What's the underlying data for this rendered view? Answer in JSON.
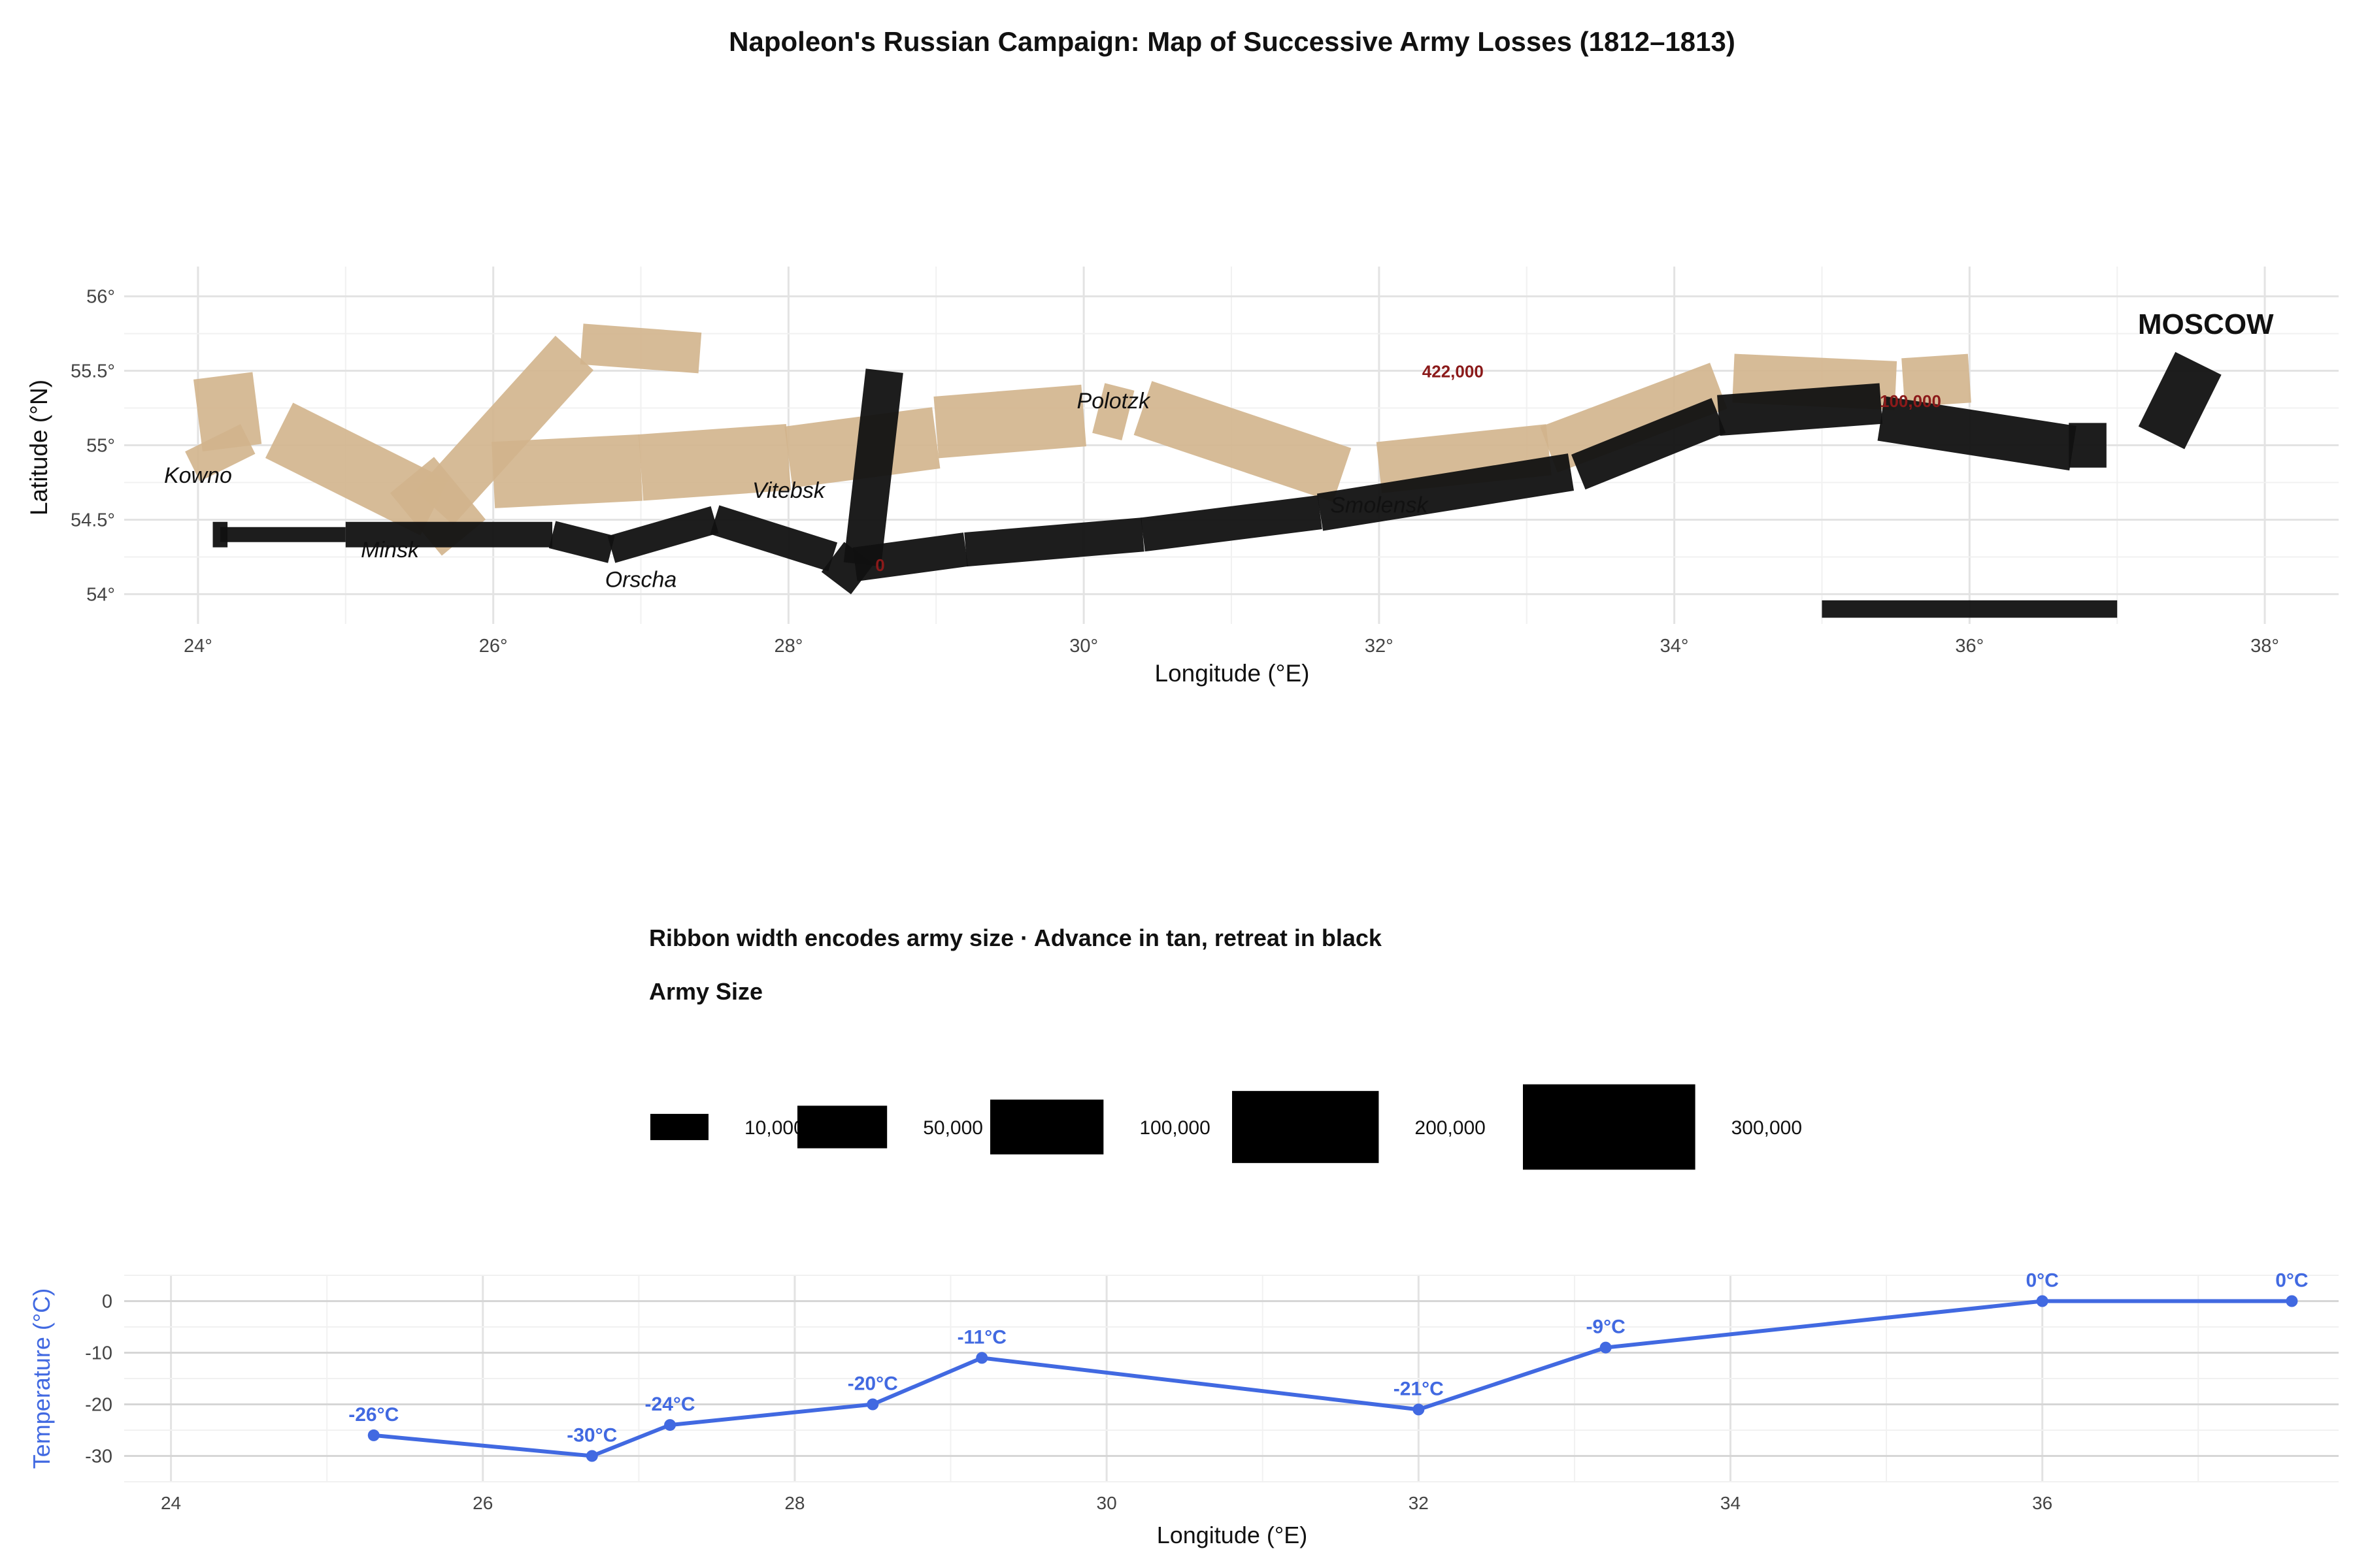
{
  "title": "Napoleon's Russian Campaign: Map of Successive Army Losses (1812–1813)",
  "chart_data": [
    {
      "type": "line",
      "name": "campaign-map",
      "xlabel": "Longitude (°E)",
      "ylabel": "Latitude (°N)",
      "xlim": [
        23.5,
        38.5
      ],
      "ylim": [
        53.8,
        56.2
      ],
      "grid": true,
      "x_ticks": [
        24,
        26,
        28,
        30,
        32,
        34,
        36,
        38
      ],
      "x_tick_labels": [
        "24°",
        "26°",
        "28°",
        "30°",
        "32°",
        "34°",
        "36°",
        "38°"
      ],
      "y_ticks": [
        54,
        54.5,
        55,
        55.5,
        56
      ],
      "y_tick_labels": [
        "54°",
        "54.5°",
        "55°",
        "55.5°",
        "56°"
      ],
      "advance_color": "#d2b48c",
      "retreat_color": "#111111",
      "advance_segments": [
        {
          "x1": 24.0,
          "y1": 55.2,
          "x2": 24.4,
          "y2": 55.25,
          "size": 422000
        },
        {
          "x1": 24.1,
          "y1": 55.05,
          "x2": 24.2,
          "y2": 54.85,
          "size": 300000
        },
        {
          "x1": 24.55,
          "y1": 55.1,
          "x2": 25.6,
          "y2": 54.58,
          "size": 300000
        },
        {
          "x1": 25.6,
          "y1": 54.58,
          "x2": 26.55,
          "y2": 55.62,
          "size": 200000
        },
        {
          "x1": 26.6,
          "y1": 55.68,
          "x2": 27.4,
          "y2": 55.62,
          "size": 120000
        },
        {
          "x1": 25.45,
          "y1": 54.8,
          "x2": 25.8,
          "y2": 54.38,
          "size": 250000
        },
        {
          "x1": 26.0,
          "y1": 54.8,
          "x2": 27.0,
          "y2": 54.85,
          "size": 350000
        },
        {
          "x1": 27.0,
          "y1": 54.85,
          "x2": 28.0,
          "y2": 54.92,
          "size": 350000
        },
        {
          "x1": 28.0,
          "y1": 54.92,
          "x2": 29.0,
          "y2": 55.05,
          "size": 300000
        },
        {
          "x1": 29.0,
          "y1": 55.12,
          "x2": 30.0,
          "y2": 55.2,
          "size": 300000
        },
        {
          "x1": 30.1,
          "y1": 55.25,
          "x2": 30.3,
          "y2": 55.2,
          "size": 200000
        },
        {
          "x1": 30.4,
          "y1": 55.25,
          "x2": 31.75,
          "y2": 54.8,
          "size": 250000
        },
        {
          "x1": 32.0,
          "y1": 54.85,
          "x2": 33.15,
          "y2": 54.97,
          "size": 200000
        },
        {
          "x1": 33.15,
          "y1": 54.97,
          "x2": 34.3,
          "y2": 55.4,
          "size": 180000
        },
        {
          "x1": 34.4,
          "y1": 55.45,
          "x2": 35.5,
          "y2": 55.4,
          "size": 180000
        },
        {
          "x1": 35.55,
          "y1": 55.42,
          "x2": 36.0,
          "y2": 55.45,
          "size": 180000
        }
      ],
      "retreat_segments": [
        {
          "x1": 37.3,
          "y1": 55.05,
          "x2": 37.55,
          "y2": 55.55,
          "size": 200000
        },
        {
          "x1": 36.8,
          "y1": 55.15,
          "x2": 36.8,
          "y2": 54.85,
          "size": 100000
        },
        {
          "x1": 35.4,
          "y1": 55.18,
          "x2": 36.7,
          "y2": 54.98,
          "size": 150000
        },
        {
          "x1": 34.3,
          "y1": 55.2,
          "x2": 35.4,
          "y2": 55.28,
          "size": 120000
        },
        {
          "x1": 33.35,
          "y1": 54.82,
          "x2": 34.3,
          "y2": 55.2,
          "size": 100000
        },
        {
          "x1": 31.6,
          "y1": 54.55,
          "x2": 33.3,
          "y2": 54.82,
          "size": 100000
        },
        {
          "x1": 30.4,
          "y1": 54.4,
          "x2": 31.6,
          "y2": 54.55,
          "size": 80000
        },
        {
          "x1": 29.2,
          "y1": 54.3,
          "x2": 30.4,
          "y2": 54.4,
          "size": 80000
        },
        {
          "x1": 28.45,
          "y1": 54.2,
          "x2": 29.2,
          "y2": 54.3,
          "size": 80000
        },
        {
          "x1": 28.65,
          "y1": 55.5,
          "x2": 28.5,
          "y2": 54.2,
          "size": 100000
        },
        {
          "x1": 28.3,
          "y1": 54.25,
          "x2": 28.5,
          "y2": 54.1,
          "size": 100000
        },
        {
          "x1": 27.5,
          "y1": 54.5,
          "x2": 28.3,
          "y2": 54.25,
          "size": 60000
        },
        {
          "x1": 26.8,
          "y1": 54.3,
          "x2": 27.5,
          "y2": 54.5,
          "size": 50000
        },
        {
          "x1": 26.4,
          "y1": 54.4,
          "x2": 26.8,
          "y2": 54.3,
          "size": 50000
        },
        {
          "x1": 25.0,
          "y1": 54.4,
          "x2": 26.4,
          "y2": 54.4,
          "size": 40000
        },
        {
          "x1": 24.15,
          "y1": 54.4,
          "x2": 25.0,
          "y2": 54.4,
          "size": 10000
        },
        {
          "x1": 24.1,
          "y1": 54.4,
          "x2": 24.2,
          "y2": 54.4,
          "size": 40000
        },
        {
          "x1": 35.0,
          "y1": 53.9,
          "x2": 37.0,
          "y2": 53.9,
          "size": 15000
        }
      ],
      "cities": [
        {
          "name": "Kowno",
          "x": 24.0,
          "y": 54.8,
          "style": "italic"
        },
        {
          "name": "Minsk",
          "x": 25.3,
          "y": 54.3,
          "style": "italic"
        },
        {
          "name": "Orscha",
          "x": 27.0,
          "y": 54.1,
          "style": "italic"
        },
        {
          "name": "Vitebsk",
          "x": 28.0,
          "y": 54.7,
          "style": "italic"
        },
        {
          "name": "Polotzk",
          "x": 30.2,
          "y": 55.3,
          "style": "italic"
        },
        {
          "name": "Smolensk",
          "x": 32.0,
          "y": 54.6,
          "style": "italic"
        },
        {
          "name": "MOSCOW",
          "x": 37.6,
          "y": 55.8,
          "style": "bold"
        }
      ],
      "annotations": [
        {
          "text": "422,000",
          "x": 32.5,
          "y": 55.5
        },
        {
          "text": "100,000",
          "x": 35.6,
          "y": 55.3
        },
        {
          "text": "0",
          "x": 28.62,
          "y": 54.2
        }
      ]
    },
    {
      "type": "line",
      "name": "temperature",
      "xlabel": "Longitude (°E)",
      "ylabel": "Temperature (°C)",
      "xlim": [
        23.7,
        37.9
      ],
      "ylim": [
        -35,
        5
      ],
      "grid": true,
      "color": "#4169e1",
      "x_ticks": [
        24,
        26,
        28,
        30,
        32,
        34,
        36
      ],
      "x_tick_labels": [
        "24",
        "26",
        "28",
        "30",
        "32",
        "34",
        "36"
      ],
      "y_ticks": [
        0,
        -10,
        -20,
        -30
      ],
      "y_tick_labels": [
        "0",
        "-10",
        "-20",
        "-30"
      ],
      "x": [
        25.3,
        26.7,
        27.2,
        28.5,
        29.2,
        32.0,
        33.2,
        36.0,
        37.6
      ],
      "y": [
        -26,
        -30,
        -24,
        -20,
        -11,
        -21,
        -9,
        0,
        0
      ],
      "point_labels": [
        "-26°C",
        "-30°C",
        "-24°C",
        "-20°C",
        "-11°C",
        "-21°C",
        "-9°C",
        "0°C",
        "0°C"
      ]
    }
  ],
  "legend": {
    "subtitle": "Ribbon width encodes army size · Advance in tan, retreat in black",
    "title": "Army Size",
    "entries": [
      {
        "label": "10,000",
        "size": 10000
      },
      {
        "label": "50,000",
        "size": 50000
      },
      {
        "label": "100,000",
        "size": 100000
      },
      {
        "label": "200,000",
        "size": 200000
      },
      {
        "label": "300,000",
        "size": 300000
      }
    ]
  }
}
